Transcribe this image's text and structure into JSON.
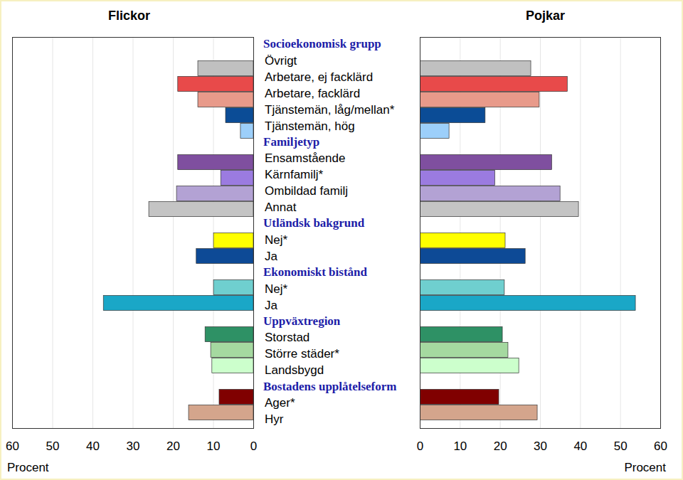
{
  "chart_data": {
    "type": "bar",
    "orientation": "horizontal",
    "groups": [
      {
        "name": "Socioekonomisk grupp",
        "categories": [
          "Övrigt",
          "Arbetare, ej facklärd",
          "Arbetare, facklärd",
          "Tjänstemän, låg/mellan*",
          "Tjänstemän, hög"
        ]
      },
      {
        "name": "Familjetyp",
        "categories": [
          "Ensamstående",
          "Kärnfamilj*",
          "Ombildad familj",
          "Annat"
        ]
      },
      {
        "name": "Utländsk bakgrund",
        "categories": [
          "Nej*",
          "Ja"
        ]
      },
      {
        "name": "Ekonomiskt bistånd",
        "categories": [
          "Nej*",
          "Ja"
        ]
      },
      {
        "name": "Uppväxtregion",
        "categories": [
          "Storstad",
          "Större städer*",
          "Landsbygd"
        ]
      },
      {
        "name": "Bostadens upplåtelseform",
        "categories": [
          "Ager*",
          "Hyr"
        ]
      }
    ],
    "colors": [
      "#c0c0c0",
      "#e84a4a",
      "#e89a8a",
      "#0b4c96",
      "#9ccffa",
      "#7f4f9f",
      "#9b7be0",
      "#b3a2d4",
      "#c4c4c4",
      "#ffff00",
      "#0d4a96",
      "#6fcfcf",
      "#1aa7c7",
      "#2e9165",
      "#a5d9a0",
      "#ccffcc",
      "#800000",
      "#d4a58c"
    ],
    "series": [
      {
        "name": "Flickor",
        "values": [
          13.8,
          18.8,
          13.8,
          6.9,
          3.2,
          18.8,
          8.1,
          19.1,
          26.0,
          9.9,
          14.2,
          9.9,
          37.3,
          12.0,
          10.6,
          10.3,
          8.5,
          16.1
        ]
      },
      {
        "name": "Pojkar",
        "values": [
          27.7,
          36.8,
          29.8,
          16.3,
          7.3,
          32.9,
          18.7,
          35.0,
          39.6,
          21.3,
          26.3,
          21.1,
          53.8,
          20.6,
          22.0,
          24.7,
          19.7,
          29.3
        ]
      }
    ],
    "xlabel": "Procent",
    "xlim": [
      0,
      60
    ],
    "xticks": [
      0,
      10,
      20,
      30,
      40,
      50,
      60
    ],
    "grid": true
  }
}
